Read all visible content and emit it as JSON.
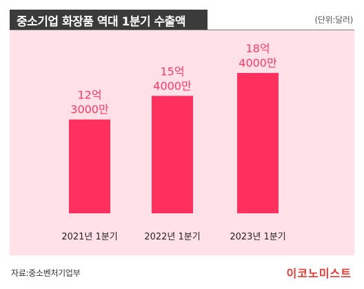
{
  "header": {
    "title": "중소기업 화장품 역대 1분기 수출액",
    "unit": "(단위:달러)"
  },
  "footer": {
    "source": "자료:중소벤처기업부",
    "logo": "이코노미스트"
  },
  "colors": {
    "bar": "#ff2f5e",
    "label": "#ff3a66",
    "plot_background": "#ffe1e7",
    "title_background": "#3b3b3b",
    "logo": "#e8352d"
  },
  "chart_data": {
    "type": "bar",
    "title": "중소기업 화장품 역대 1분기 수출액",
    "unit": "(단위:달러)",
    "categories": [
      "2021년 1분기",
      "2022년 1분기",
      "2023년 1분기"
    ],
    "values": [
      1230000000,
      1540000000,
      1840000000
    ],
    "data_labels": [
      [
        "12억",
        "3000만"
      ],
      [
        "15억",
        "4000만"
      ],
      [
        "18억",
        "4000만"
      ]
    ],
    "ylim": [
      0,
      2400000000
    ],
    "grid": false,
    "legend": "none",
    "source": "자료:중소벤처기업부"
  }
}
